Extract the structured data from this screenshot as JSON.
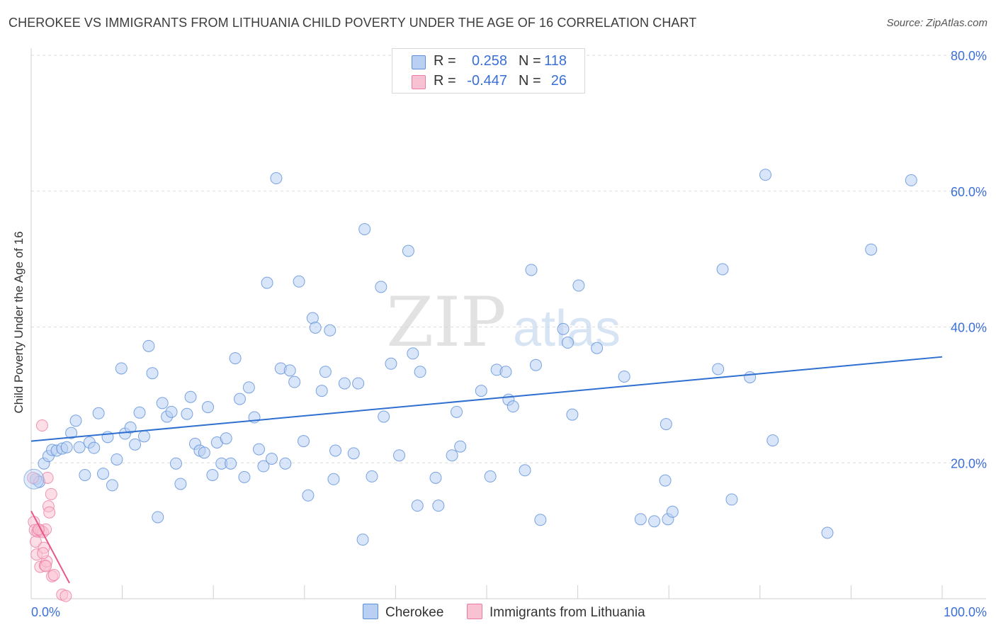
{
  "title": "CHEROKEE VS IMMIGRANTS FROM LITHUANIA CHILD POVERTY UNDER THE AGE OF 16 CORRELATION CHART",
  "source": "Source: ZipAtlas.com",
  "watermark": {
    "zip": "ZIP",
    "atlas": "atlas"
  },
  "stats": [
    {
      "r_label": "R =",
      "r_value": "0.258",
      "n_label": "N =",
      "n_value": "118",
      "color": "#b9d0f3"
    },
    {
      "r_label": "R =",
      "r_value": "-0.447",
      "n_label": "N =",
      "n_value": "26",
      "color": "#f9c2d3"
    }
  ],
  "legend": [
    {
      "label": "Cherokee",
      "color": "#b9d0f3"
    },
    {
      "label": "Immigrants from Lithuania",
      "color": "#f9c2d3"
    }
  ],
  "chart_data": {
    "type": "scatter",
    "title": "CHEROKEE VS IMMIGRANTS FROM LITHUANIA CHILD POVERTY UNDER THE AGE OF 16 CORRELATION CHART",
    "xlabel": "",
    "ylabel": "Child Poverty Under the Age of 16",
    "xlim": [
      0,
      100
    ],
    "ylim": [
      0,
      80
    ],
    "x_tick_labels": [
      "0.0%",
      "100.0%"
    ],
    "y_ticks": [
      20,
      40,
      60,
      80
    ],
    "y_tick_labels": [
      "20.0%",
      "40.0%",
      "60.0%",
      "80.0%"
    ],
    "grid": true,
    "series": [
      {
        "name": "Cherokee",
        "color": "#5b8fd9",
        "fill": "#b9d0f3",
        "trend": {
          "x": [
            0,
            100
          ],
          "y": [
            23.2,
            35.6
          ],
          "color": "#2f6fcf"
        },
        "points": [
          [
            0.5,
            17.6
          ],
          [
            0.9,
            17.2
          ],
          [
            1.4,
            19.9
          ],
          [
            1.9,
            21.0
          ],
          [
            2.3,
            21.9
          ],
          [
            2.8,
            21.8
          ],
          [
            3.4,
            22.1
          ],
          [
            3.9,
            22.3
          ],
          [
            4.4,
            24.4
          ],
          [
            4.9,
            26.2
          ],
          [
            5.3,
            22.3
          ],
          [
            5.9,
            18.2
          ],
          [
            6.4,
            23.0
          ],
          [
            6.9,
            22.2
          ],
          [
            7.4,
            27.3
          ],
          [
            7.9,
            18.4
          ],
          [
            8.4,
            23.8
          ],
          [
            8.9,
            16.7
          ],
          [
            9.4,
            20.5
          ],
          [
            9.9,
            33.9
          ],
          [
            10.3,
            24.3
          ],
          [
            10.9,
            25.2
          ],
          [
            11.4,
            22.7
          ],
          [
            11.9,
            27.4
          ],
          [
            12.4,
            23.9
          ],
          [
            12.9,
            37.2
          ],
          [
            13.3,
            33.2
          ],
          [
            13.9,
            12.0
          ],
          [
            14.4,
            28.8
          ],
          [
            14.9,
            26.8
          ],
          [
            15.4,
            27.5
          ],
          [
            15.9,
            19.9
          ],
          [
            16.4,
            16.9
          ],
          [
            17.1,
            27.2
          ],
          [
            17.5,
            29.7
          ],
          [
            18.0,
            22.8
          ],
          [
            18.5,
            21.8
          ],
          [
            19.0,
            21.5
          ],
          [
            19.4,
            28.2
          ],
          [
            19.9,
            18.2
          ],
          [
            20.4,
            23.0
          ],
          [
            20.9,
            19.9
          ],
          [
            21.4,
            23.6
          ],
          [
            21.9,
            19.9
          ],
          [
            22.4,
            35.4
          ],
          [
            22.9,
            29.4
          ],
          [
            23.4,
            17.9
          ],
          [
            23.9,
            31.1
          ],
          [
            24.5,
            26.7
          ],
          [
            25.0,
            22.0
          ],
          [
            25.5,
            19.5
          ],
          [
            25.9,
            46.5
          ],
          [
            26.4,
            20.6
          ],
          [
            26.9,
            61.9
          ],
          [
            27.4,
            33.9
          ],
          [
            27.9,
            19.9
          ],
          [
            28.4,
            33.6
          ],
          [
            28.9,
            31.9
          ],
          [
            29.4,
            46.7
          ],
          [
            29.9,
            23.2
          ],
          [
            30.4,
            15.2
          ],
          [
            30.9,
            41.3
          ],
          [
            31.2,
            39.9
          ],
          [
            31.9,
            30.6
          ],
          [
            32.3,
            33.4
          ],
          [
            32.8,
            39.5
          ],
          [
            33.2,
            17.6
          ],
          [
            33.4,
            21.8
          ],
          [
            34.4,
            31.7
          ],
          [
            35.4,
            21.4
          ],
          [
            35.9,
            31.7
          ],
          [
            36.4,
            8.7
          ],
          [
            36.6,
            54.4
          ],
          [
            37.4,
            18.0
          ],
          [
            38.4,
            45.9
          ],
          [
            38.7,
            26.8
          ],
          [
            39.5,
            34.6
          ],
          [
            40.4,
            21.1
          ],
          [
            41.4,
            51.2
          ],
          [
            41.9,
            36.1
          ],
          [
            42.4,
            13.7
          ],
          [
            42.7,
            33.4
          ],
          [
            44.4,
            17.8
          ],
          [
            44.7,
            13.7
          ],
          [
            46.2,
            21.1
          ],
          [
            46.7,
            27.5
          ],
          [
            47.1,
            22.4
          ],
          [
            49.4,
            30.6
          ],
          [
            50.4,
            18.0
          ],
          [
            51.1,
            33.7
          ],
          [
            52.1,
            33.4
          ],
          [
            52.4,
            29.3
          ],
          [
            52.9,
            28.3
          ],
          [
            54.2,
            18.9
          ],
          [
            54.9,
            48.4
          ],
          [
            55.4,
            34.4
          ],
          [
            55.9,
            11.6
          ],
          [
            58.4,
            39.7
          ],
          [
            58.9,
            37.7
          ],
          [
            59.4,
            27.1
          ],
          [
            60.1,
            46.1
          ],
          [
            62.1,
            36.9
          ],
          [
            65.1,
            32.7
          ],
          [
            66.9,
            11.7
          ],
          [
            68.4,
            11.4
          ],
          [
            69.7,
            25.7
          ],
          [
            69.9,
            11.7
          ],
          [
            70.4,
            12.8
          ],
          [
            69.6,
            17.4
          ],
          [
            75.4,
            33.8
          ],
          [
            75.9,
            48.5
          ],
          [
            76.9,
            14.6
          ],
          [
            80.6,
            62.4
          ],
          [
            78.9,
            32.6
          ],
          [
            81.4,
            23.3
          ],
          [
            92.2,
            51.4
          ],
          [
            87.4,
            9.7
          ],
          [
            96.6,
            61.6
          ]
        ]
      },
      {
        "name": "Immigrants from Lithuania",
        "color": "#ec7aa0",
        "fill": "#f9c2d3",
        "trend": {
          "x": [
            0,
            4.2
          ],
          "y": [
            12.9,
            2.3
          ],
          "color": "#e8578a"
        },
        "points": [
          [
            0.2,
            17.8
          ],
          [
            0.3,
            11.3
          ],
          [
            0.4,
            10.1
          ],
          [
            0.5,
            8.4
          ],
          [
            0.6,
            6.5
          ],
          [
            0.7,
            9.9
          ],
          [
            0.9,
            10.1
          ],
          [
            1.0,
            4.7
          ],
          [
            1.1,
            10.0
          ],
          [
            1.3,
            9.8
          ],
          [
            1.4,
            7.5
          ],
          [
            1.5,
            4.9
          ],
          [
            1.6,
            10.2
          ],
          [
            1.7,
            5.5
          ],
          [
            1.8,
            17.8
          ],
          [
            1.9,
            13.6
          ],
          [
            2.0,
            12.7
          ],
          [
            2.2,
            15.4
          ],
          [
            2.3,
            3.3
          ],
          [
            2.5,
            3.5
          ],
          [
            3.4,
            0.6
          ],
          [
            3.8,
            0.4
          ],
          [
            1.2,
            25.5
          ],
          [
            0.8,
            10.2
          ],
          [
            1.6,
            4.8
          ],
          [
            1.3,
            6.7
          ]
        ]
      }
    ]
  }
}
